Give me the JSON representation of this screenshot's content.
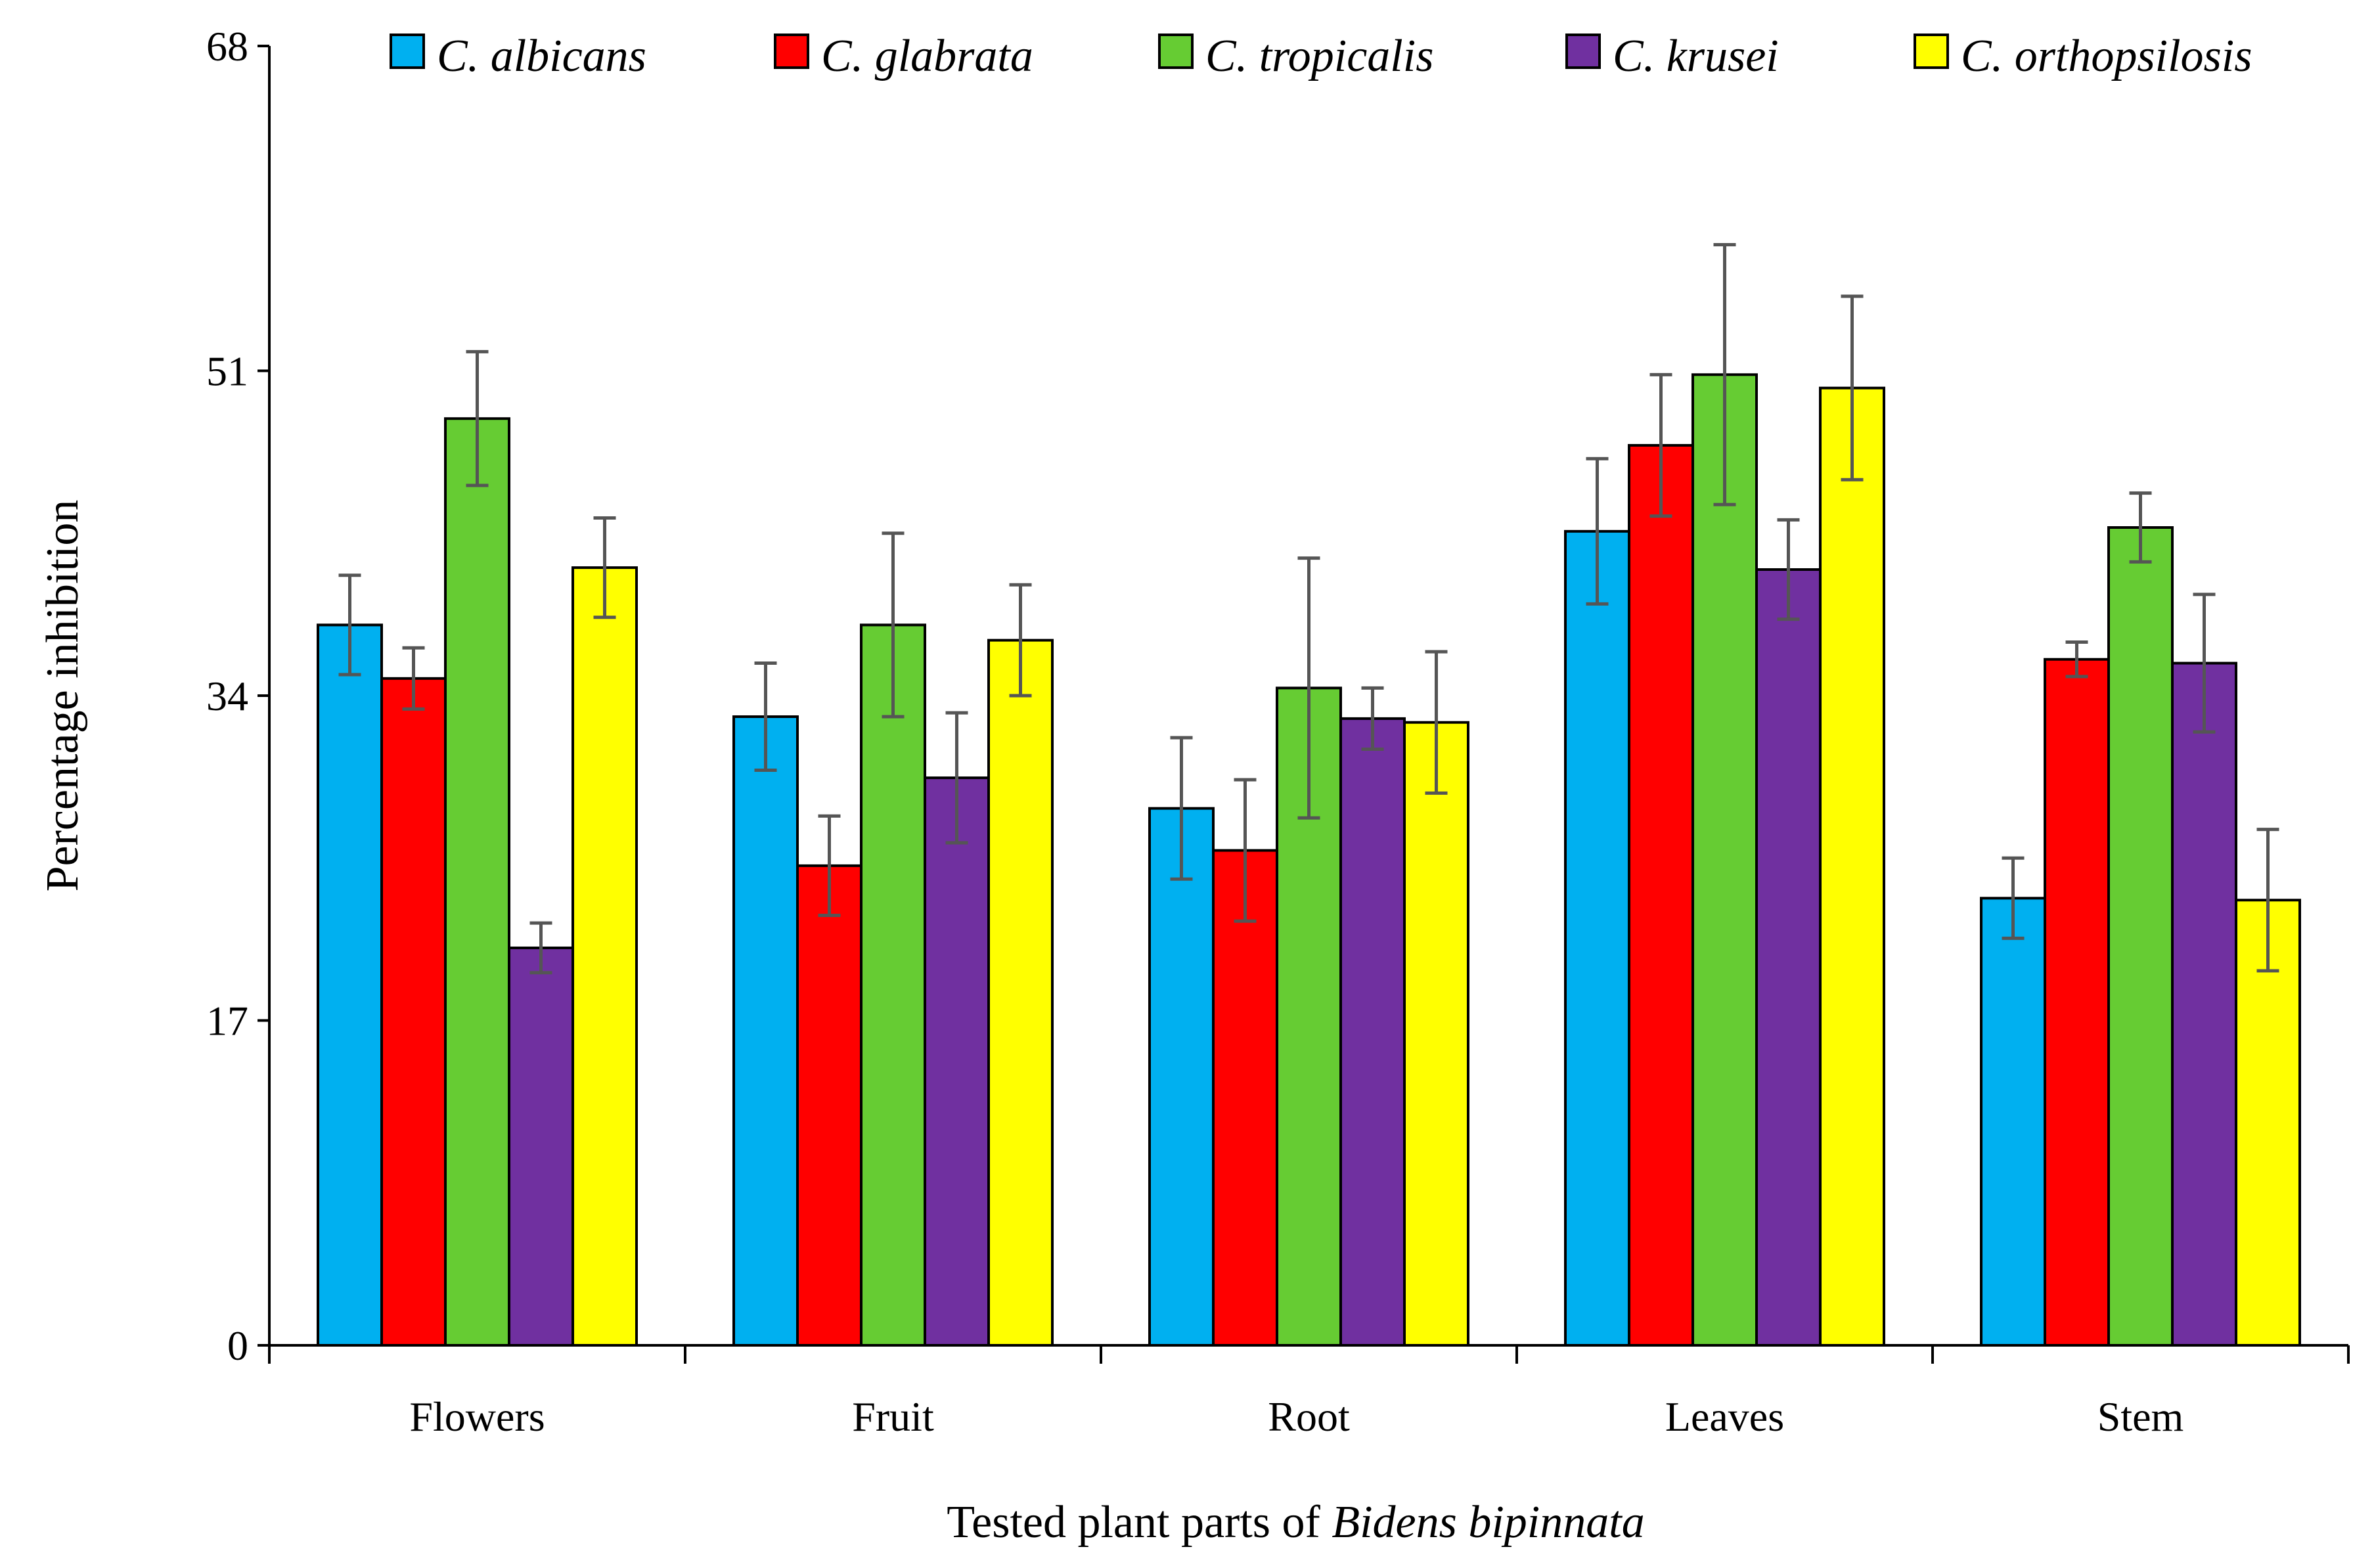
{
  "chart_data": {
    "type": "bar",
    "xlabel": "Tested plant parts of",
    "xlabel_italic": "Bidens bipinnata",
    "ylabel": "Percentage  inhibition",
    "ylim": [
      0,
      68
    ],
    "yticks": [
      "0",
      "17",
      "34",
      "51",
      "68"
    ],
    "ytick_values": [
      0,
      17,
      34,
      51,
      68
    ],
    "grid": false,
    "legend_position": "top",
    "categories": [
      "Flowers",
      "Fruit",
      "Root",
      "Leaves",
      "Stem"
    ],
    "series": [
      {
        "name": "C. albicans",
        "color": "#00B0F0",
        "values": [
          37.7,
          32.9,
          28.1,
          42.6,
          23.4
        ],
        "errors": [
          2.6,
          2.8,
          3.7,
          3.8,
          2.1
        ]
      },
      {
        "name": "C. glabrata",
        "color": "#FF0000",
        "values": [
          34.9,
          25.1,
          25.9,
          47.1,
          35.9
        ],
        "errors": [
          1.6,
          2.6,
          3.7,
          3.7,
          0.9
        ]
      },
      {
        "name": "C. tropicalis",
        "color": "#66CC33",
        "values": [
          48.5,
          37.7,
          34.4,
          50.8,
          42.8
        ],
        "errors": [
          3.5,
          4.8,
          6.8,
          6.8,
          1.8
        ]
      },
      {
        "name": "C. krusei",
        "color": "#7030A0",
        "values": [
          20.8,
          29.7,
          32.8,
          40.6,
          35.7
        ],
        "errors": [
          1.3,
          3.4,
          1.6,
          2.6,
          3.6
        ]
      },
      {
        "name": "C. orthopsilosis",
        "color": "#FFFF00",
        "values": [
          40.7,
          36.9,
          32.6,
          50.1,
          23.3
        ],
        "errors": [
          2.6,
          2.9,
          3.7,
          4.8,
          3.7
        ]
      }
    ]
  }
}
